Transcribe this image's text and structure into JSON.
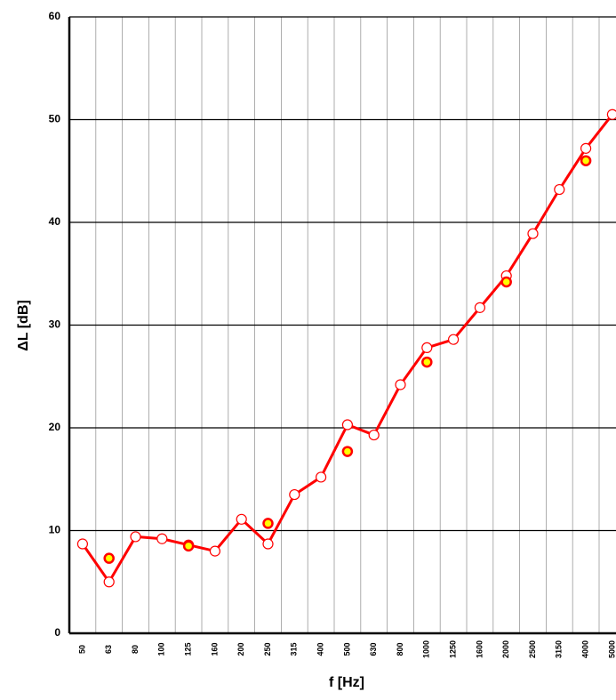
{
  "chart_data": {
    "type": "line",
    "x_label": "f [Hz]",
    "y_label": "ΔL [dB]",
    "categories": [
      "50",
      "63",
      "80",
      "100",
      "125",
      "160",
      "200",
      "250",
      "315",
      "400",
      "500",
      "630",
      "800",
      "1000",
      "1250",
      "1600",
      "2000",
      "2500",
      "3150",
      "4000",
      "5000"
    ],
    "series": [
      {
        "color": "#ff0000",
        "marker_fill": "#ffffff",
        "line": true,
        "values": [
          8.7,
          5.0,
          9.4,
          9.2,
          8.6,
          8.0,
          11.1,
          8.7,
          13.5,
          15.2,
          20.3,
          19.3,
          24.2,
          27.8,
          28.6,
          31.7,
          34.8,
          38.9,
          43.2,
          47.2,
          50.5
        ]
      },
      {
        "color": "#ff0000",
        "marker_fill": "#ffff00",
        "line": false,
        "values": [
          null,
          7.3,
          null,
          null,
          8.5,
          null,
          null,
          10.7,
          null,
          null,
          17.7,
          null,
          null,
          26.4,
          null,
          null,
          34.2,
          null,
          null,
          46.0,
          null
        ]
      }
    ],
    "ylim": [
      0,
      60
    ],
    "yticks": [
      0,
      10,
      20,
      30,
      40,
      50,
      60
    ],
    "grid": true
  }
}
